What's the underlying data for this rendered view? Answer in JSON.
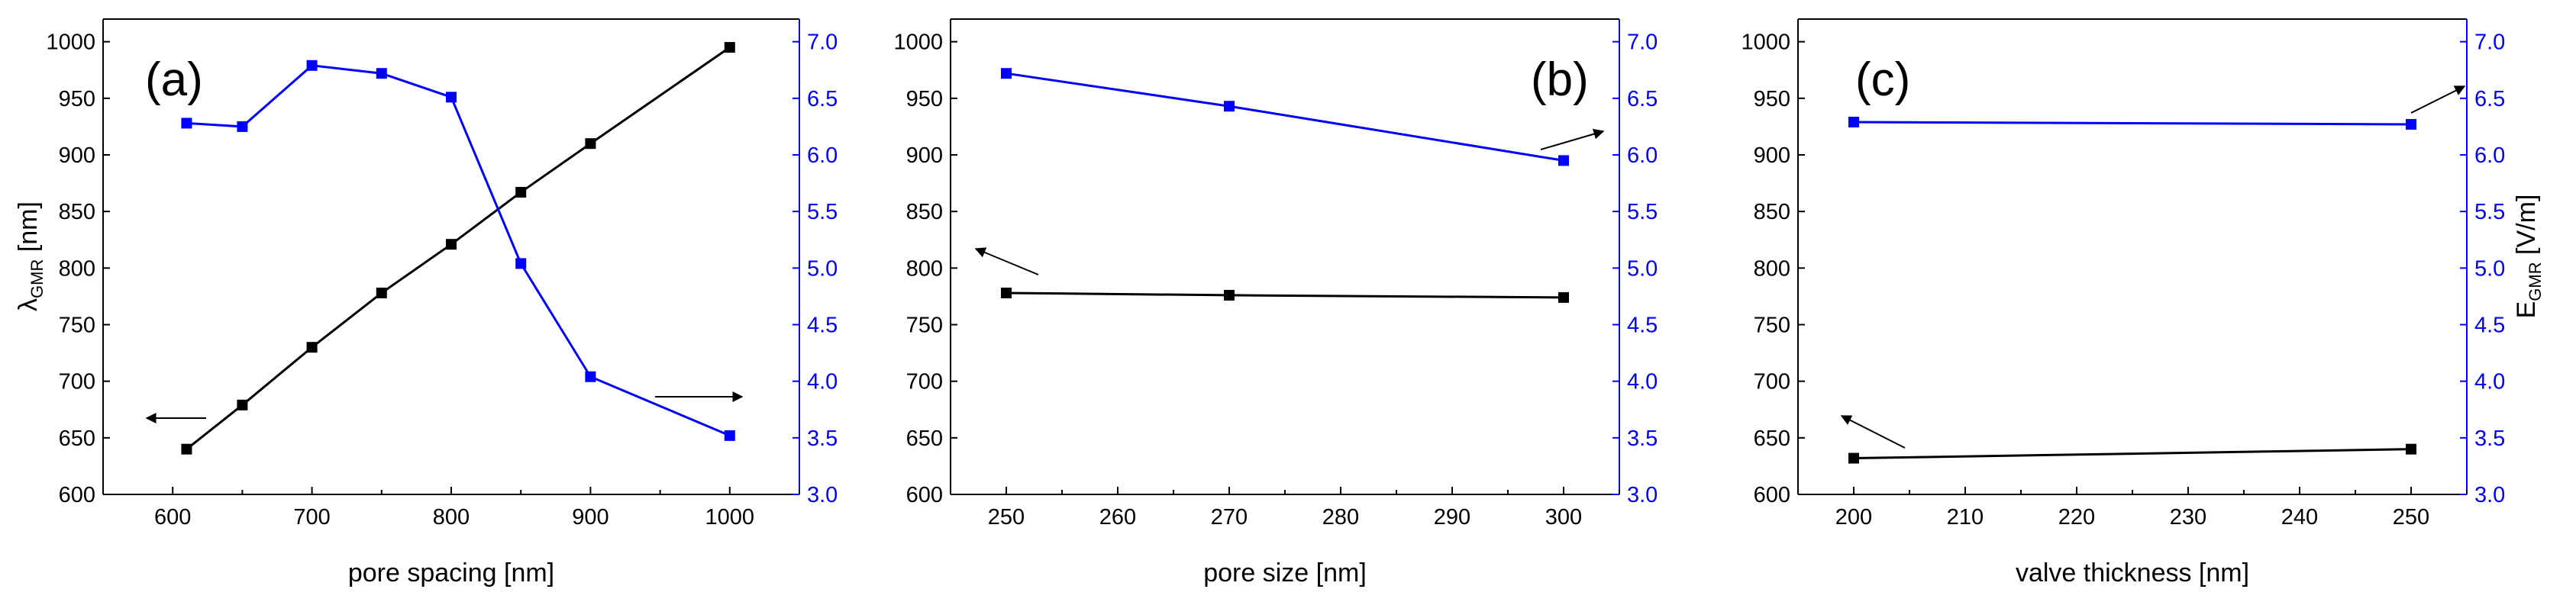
{
  "colors": {
    "left": "#000000",
    "right": "#0000ff"
  },
  "y_left": {
    "ylim": [
      600,
      1020
    ],
    "ticks": [
      600,
      650,
      700,
      750,
      800,
      850,
      900,
      950,
      1000
    ]
  },
  "y_right": {
    "ylim": [
      3.0,
      7.2
    ],
    "ticks": [
      "3.0",
      "3.5",
      "4.0",
      "4.5",
      "5.0",
      "5.5",
      "6.0",
      "6.5",
      "7.0"
    ]
  },
  "left_ylabel": {
    "symbol": "λ",
    "sub": "GMR",
    "unit": " [nm]"
  },
  "right_ylabel": {
    "symbol": "E",
    "sub": "GMR",
    "unit": " [V/m]"
  },
  "chart_data": [
    {
      "type": "line",
      "label": "(a)",
      "xlabel": "pore spacing [nm]",
      "xlim": [
        550,
        1050
      ],
      "xticks": [
        600,
        700,
        800,
        900,
        1000
      ],
      "series": [
        {
          "name": "λGMR",
          "axis": "left",
          "color": "#000000",
          "x": [
            610,
            650,
            700,
            750,
            800,
            850,
            900,
            1000
          ],
          "values": [
            640,
            679,
            730,
            778,
            821,
            867,
            910,
            995
          ]
        },
        {
          "name": "EGMR",
          "axis": "right",
          "color": "#0000ff",
          "x": [
            610,
            650,
            700,
            750,
            800,
            850,
            900,
            1000
          ],
          "values": [
            6.28,
            6.25,
            6.79,
            6.72,
            6.51,
            5.04,
            4.04,
            3.52
          ]
        }
      ]
    },
    {
      "type": "line",
      "label": "(b)",
      "xlabel": "pore size [nm]",
      "xlim": [
        245,
        305
      ],
      "xticks": [
        250,
        260,
        270,
        280,
        290,
        300
      ],
      "series": [
        {
          "name": "λGMR",
          "axis": "left",
          "color": "#000000",
          "x": [
            250,
            270,
            300
          ],
          "values": [
            778,
            776,
            774
          ]
        },
        {
          "name": "EGMR",
          "axis": "right",
          "color": "#0000ff",
          "x": [
            250,
            270,
            300
          ],
          "values": [
            6.72,
            6.43,
            5.95
          ]
        }
      ]
    },
    {
      "type": "line",
      "label": "(c)",
      "xlabel": "valve thickness [nm]",
      "xlim": [
        195,
        255
      ],
      "xticks": [
        200,
        210,
        220,
        230,
        240,
        250
      ],
      "series": [
        {
          "name": "λGMR",
          "axis": "left",
          "color": "#000000",
          "x": [
            200,
            250
          ],
          "values": [
            632,
            640
          ]
        },
        {
          "name": "EGMR",
          "axis": "right",
          "color": "#0000ff",
          "x": [
            200,
            250
          ],
          "values": [
            6.29,
            6.27
          ]
        }
      ]
    }
  ]
}
